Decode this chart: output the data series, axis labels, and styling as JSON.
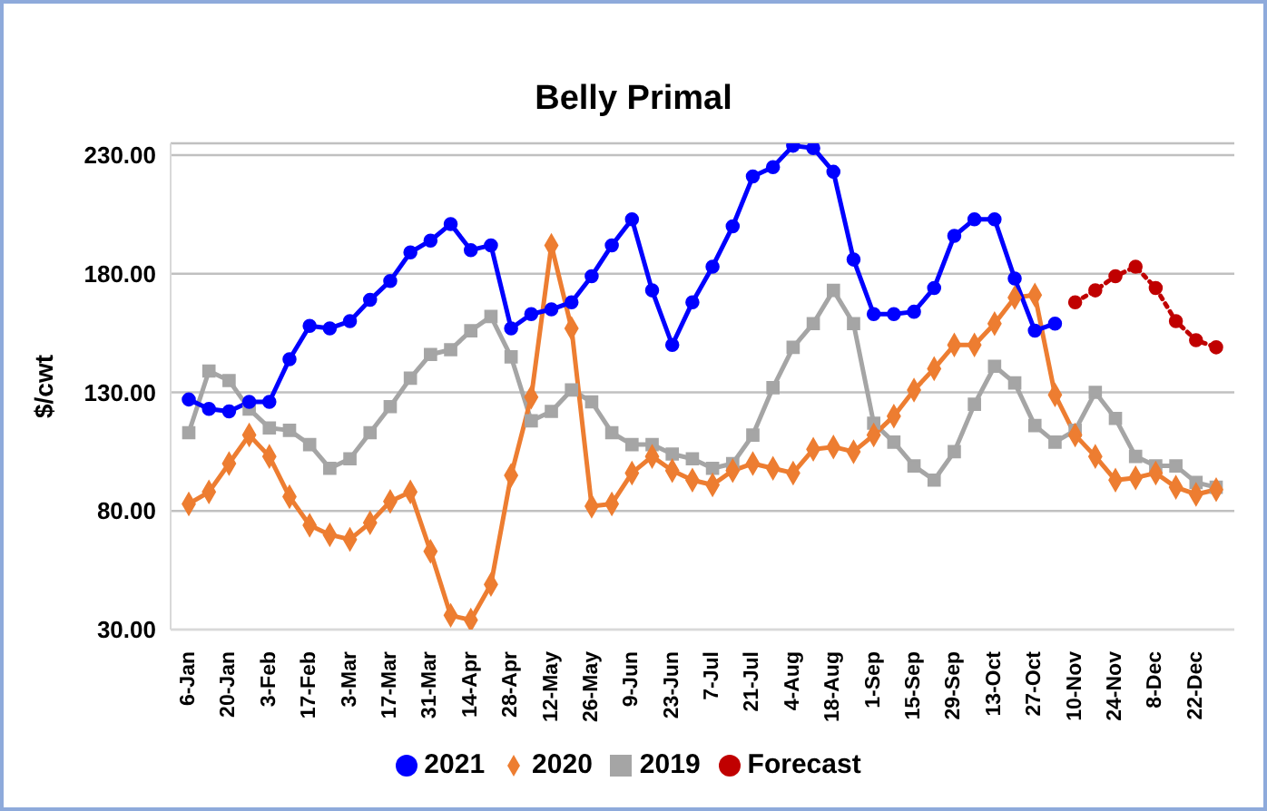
{
  "chart_data": {
    "type": "line",
    "title": "Belly Primal",
    "ylabel": "$/cwt",
    "categories": [
      "6-Jan",
      null,
      "20-Jan",
      null,
      "3-Feb",
      null,
      "17-Feb",
      null,
      "3-Mar",
      null,
      "17-Mar",
      null,
      "31-Mar",
      null,
      "14-Apr",
      null,
      "28-Apr",
      null,
      "12-May",
      null,
      "26-May",
      null,
      "9-Jun",
      null,
      "23-Jun",
      null,
      "7-Jul",
      null,
      "21-Jul",
      null,
      "4-Aug",
      null,
      "18-Aug",
      null,
      "1-Sep",
      null,
      "15-Sep",
      null,
      "29-Sep",
      null,
      "13-Oct",
      null,
      "27-Oct",
      null,
      "10-Nov",
      null,
      "24-Nov",
      null,
      "8-Dec",
      null,
      "22-Dec",
      null
    ],
    "series": [
      {
        "name": "2021",
        "color": "#0000ff",
        "marker": "circle",
        "line_style": "solid",
        "values": [
          127,
          123,
          122,
          126,
          126,
          144,
          158,
          157,
          160,
          169,
          177,
          189,
          194,
          201,
          190,
          192,
          157,
          163,
          165,
          168,
          179,
          192,
          203,
          173,
          150,
          168,
          183,
          200,
          221,
          225,
          234,
          233,
          223,
          186,
          163,
          163,
          164,
          174,
          196,
          203,
          203,
          178,
          156,
          159,
          null,
          null,
          null,
          null,
          null,
          null,
          null,
          null
        ]
      },
      {
        "name": "2020",
        "color": "#ed7d31",
        "marker": "diamond",
        "line_style": "solid",
        "values": [
          83,
          88,
          100,
          112,
          103,
          86,
          74,
          70,
          68,
          75,
          84,
          88,
          63,
          36,
          34,
          49,
          95,
          128,
          192,
          157,
          82,
          83,
          96,
          103,
          97,
          93,
          91,
          97,
          100,
          98,
          96,
          106,
          107,
          105,
          112,
          120,
          131,
          140,
          150,
          150,
          159,
          170,
          171,
          129,
          112,
          103,
          93,
          94,
          96,
          90,
          87,
          89
        ]
      },
      {
        "name": "2019",
        "color": "#a5a5a5",
        "marker": "square",
        "line_style": "solid",
        "values": [
          113,
          139,
          135,
          123,
          115,
          114,
          108,
          98,
          102,
          113,
          124,
          136,
          146,
          148,
          156,
          162,
          145,
          118,
          122,
          131,
          126,
          113,
          108,
          108,
          104,
          102,
          98,
          100,
          112,
          132,
          149,
          159,
          173,
          159,
          117,
          109,
          99,
          93,
          105,
          125,
          141,
          134,
          116,
          109,
          114,
          130,
          119,
          103,
          99,
          99,
          92,
          90
        ]
      },
      {
        "name": "Forecast",
        "color": "#c00000",
        "marker": "circle",
        "line_style": "dotted",
        "values": [
          null,
          null,
          null,
          null,
          null,
          null,
          null,
          null,
          null,
          null,
          null,
          null,
          null,
          null,
          null,
          null,
          null,
          null,
          null,
          null,
          null,
          null,
          null,
          null,
          null,
          null,
          null,
          null,
          null,
          null,
          null,
          null,
          null,
          null,
          null,
          null,
          null,
          null,
          null,
          null,
          null,
          null,
          null,
          null,
          168,
          173,
          179,
          183,
          174,
          160,
          152,
          149
        ]
      }
    ],
    "ylim": [
      30,
      235
    ],
    "yticks": [
      {
        "value": 30,
        "label": "30.00"
      },
      {
        "value": 80,
        "label": "80.00"
      },
      {
        "value": 130,
        "label": "130.00"
      },
      {
        "value": 180,
        "label": "180.00"
      },
      {
        "value": 230,
        "label": "230.00"
      }
    ],
    "grid": "y",
    "legend": "bottom"
  }
}
